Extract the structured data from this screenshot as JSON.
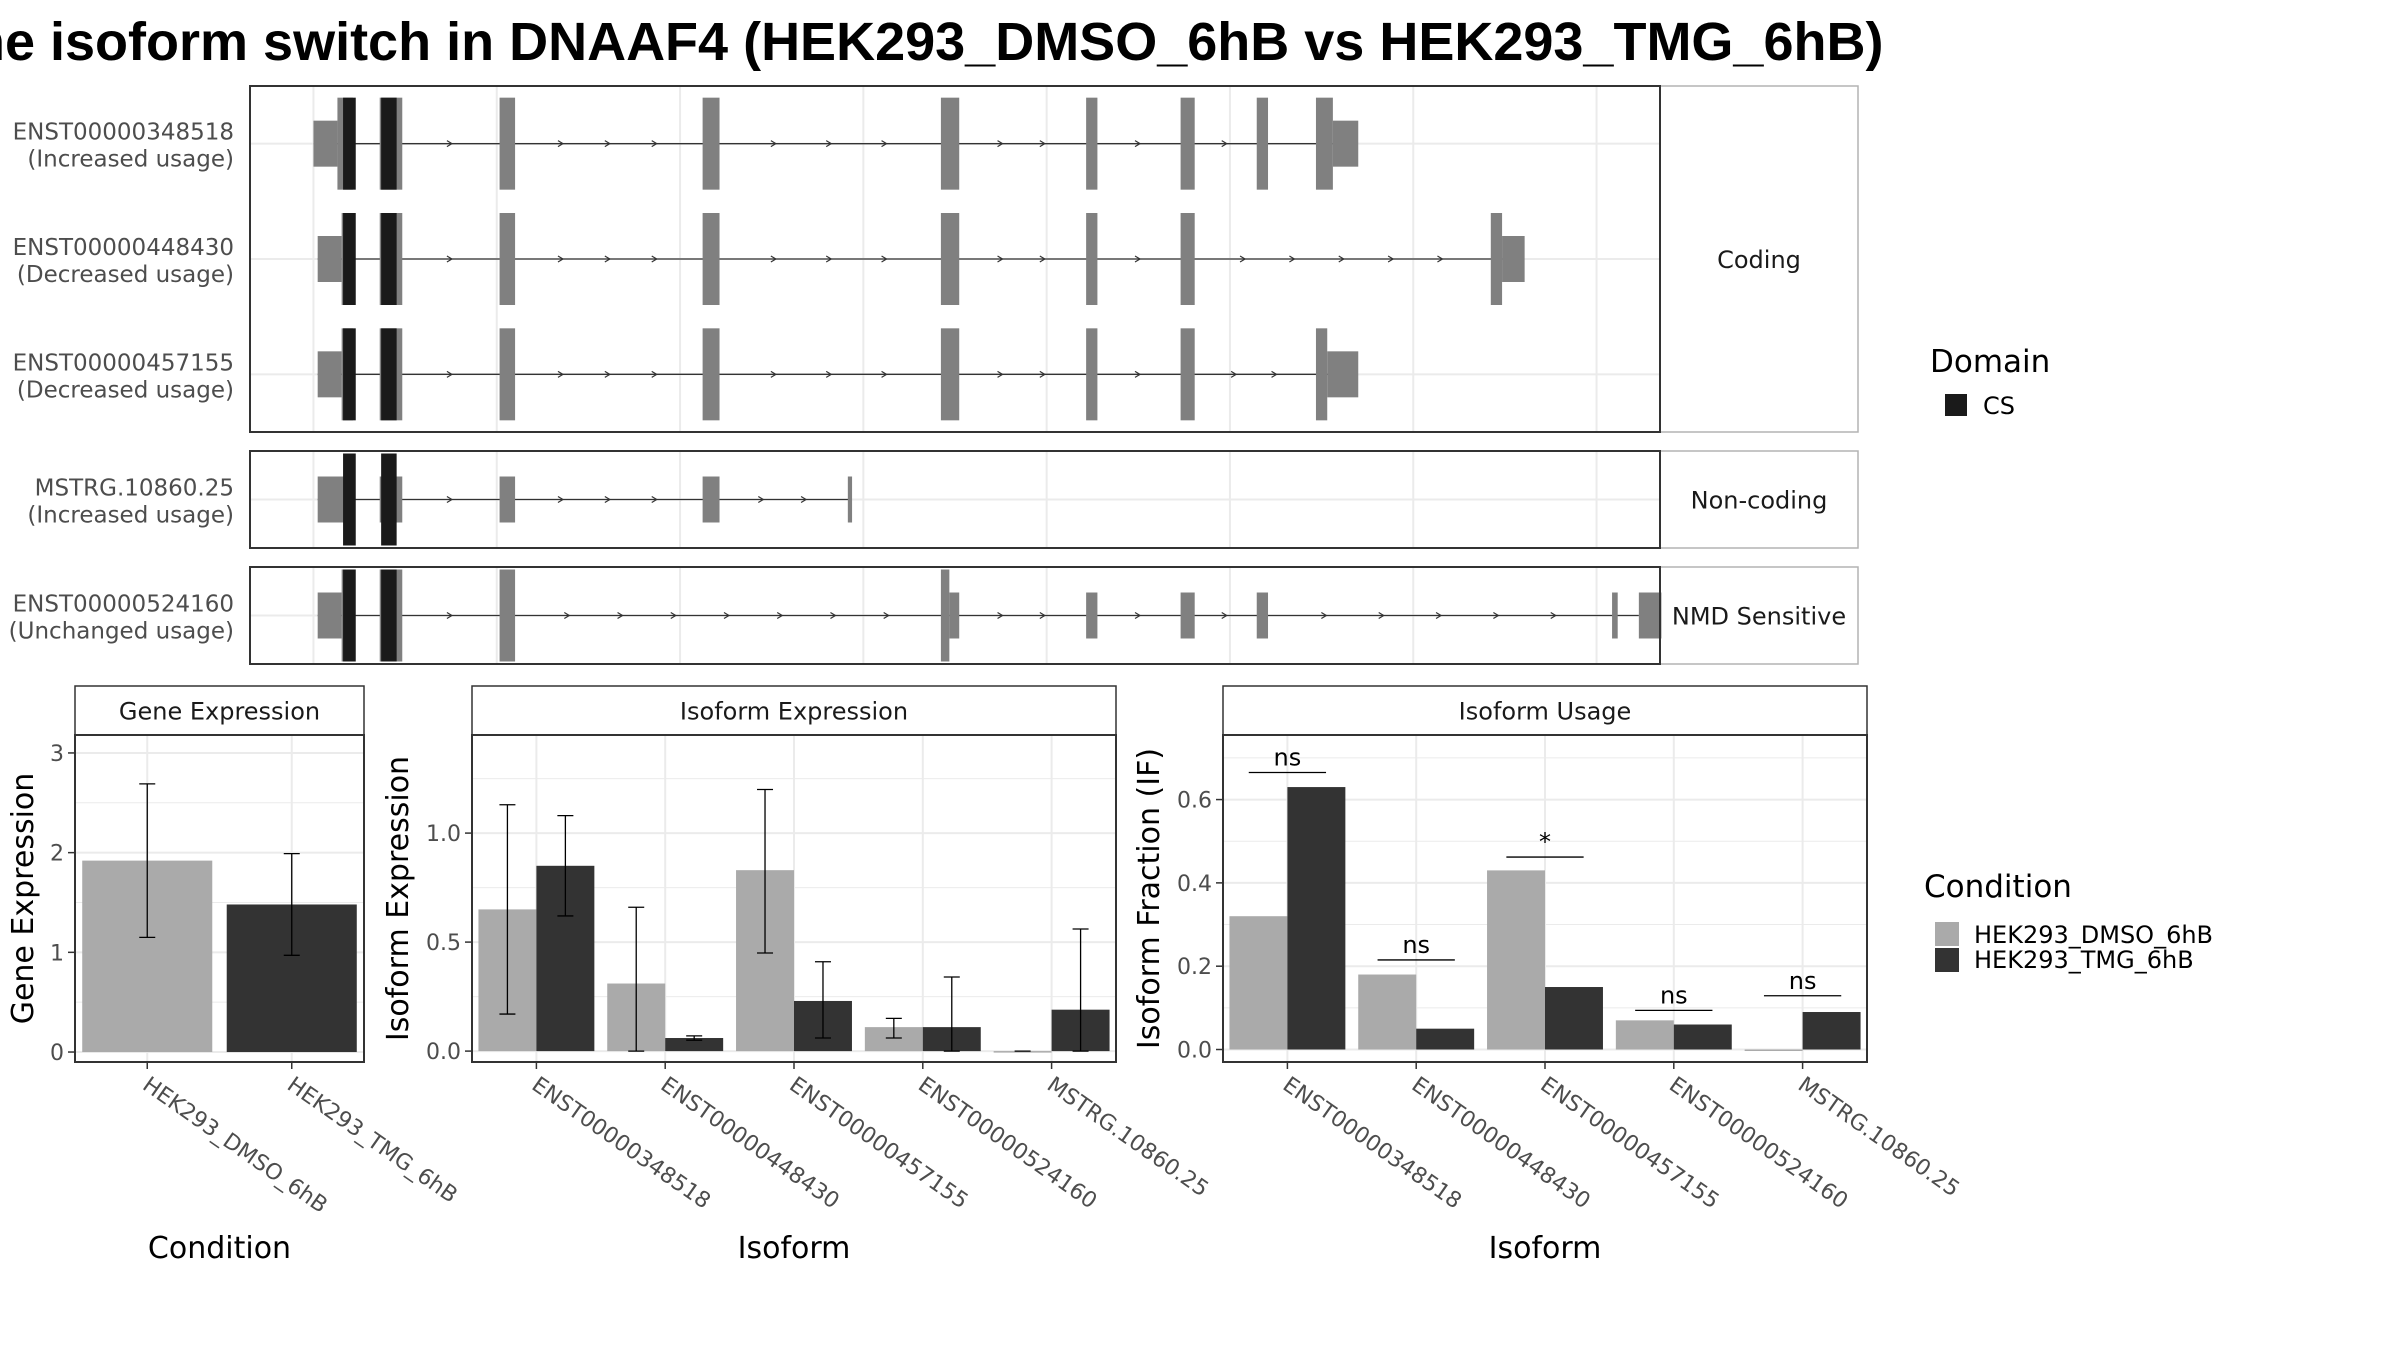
{
  "title": "he isoform switch in DNAAF4 (HEK293_DMSO_6hB vs HEK293_TMG_6hB)",
  "colors": {
    "exon": "#808080",
    "domain_cs": "#1a1a1a",
    "dmso": "#aaaaaa",
    "tmg": "#333333",
    "grid": "#ebebeb"
  },
  "structure": {
    "x_range": [
      0,
      1000
    ],
    "gridlines": [
      45,
      175,
      305,
      435,
      565,
      695,
      825,
      955
    ],
    "facets": [
      {
        "strip": "Coding",
        "rows": [
          {
            "id": "ENST00000348518",
            "usage": "(Increased usage)",
            "start": 45,
            "end": 770,
            "exons": [
              {
                "s": 45,
                "e": 62,
                "t": "utr"
              },
              {
                "s": 62,
                "e": 73,
                "t": "cds"
              },
              {
                "s": 92,
                "e": 108,
                "t": "cds"
              },
              {
                "s": 177,
                "e": 188,
                "t": "cds"
              },
              {
                "s": 321,
                "e": 333,
                "t": "cds"
              },
              {
                "s": 490,
                "e": 503,
                "t": "cds"
              },
              {
                "s": 593,
                "e": 601,
                "t": "cds"
              },
              {
                "s": 660,
                "e": 670,
                "t": "cds"
              },
              {
                "s": 714,
                "e": 722,
                "t": "cds"
              },
              {
                "s": 756,
                "e": 768,
                "t": "cds"
              },
              {
                "s": 768,
                "e": 786,
                "t": "utr"
              }
            ],
            "domains": [
              {
                "s": 66,
                "e": 75
              },
              {
                "s": 93,
                "e": 104
              }
            ]
          },
          {
            "id": "ENST00000448430",
            "usage": "(Decreased usage)",
            "start": 48,
            "end": 890,
            "exons": [
              {
                "s": 48,
                "e": 65,
                "t": "utr"
              },
              {
                "s": 65,
                "e": 73,
                "t": "cds"
              },
              {
                "s": 92,
                "e": 108,
                "t": "cds"
              },
              {
                "s": 177,
                "e": 188,
                "t": "cds"
              },
              {
                "s": 321,
                "e": 333,
                "t": "cds"
              },
              {
                "s": 490,
                "e": 503,
                "t": "cds"
              },
              {
                "s": 593,
                "e": 601,
                "t": "cds"
              },
              {
                "s": 660,
                "e": 670,
                "t": "cds"
              },
              {
                "s": 880,
                "e": 888,
                "t": "cds"
              },
              {
                "s": 888,
                "e": 904,
                "t": "utr"
              }
            ],
            "domains": [
              {
                "s": 66,
                "e": 75
              },
              {
                "s": 93,
                "e": 104
              }
            ]
          },
          {
            "id": "ENST00000457155",
            "usage": "(Decreased usage)",
            "start": 48,
            "end": 770,
            "exons": [
              {
                "s": 48,
                "e": 65,
                "t": "utr"
              },
              {
                "s": 65,
                "e": 73,
                "t": "cds"
              },
              {
                "s": 92,
                "e": 108,
                "t": "cds"
              },
              {
                "s": 177,
                "e": 188,
                "t": "cds"
              },
              {
                "s": 321,
                "e": 333,
                "t": "cds"
              },
              {
                "s": 490,
                "e": 503,
                "t": "cds"
              },
              {
                "s": 593,
                "e": 601,
                "t": "cds"
              },
              {
                "s": 660,
                "e": 670,
                "t": "cds"
              },
              {
                "s": 756,
                "e": 764,
                "t": "cds"
              },
              {
                "s": 764,
                "e": 786,
                "t": "utr"
              }
            ],
            "domains": [
              {
                "s": 66,
                "e": 75
              },
              {
                "s": 93,
                "e": 104
              }
            ]
          }
        ]
      },
      {
        "strip": "Non-coding",
        "rows": [
          {
            "id": "MSTRG.10860.25",
            "usage": "(Increased usage)",
            "start": 48,
            "end": 426,
            "exons": [
              {
                "s": 48,
                "e": 73,
                "t": "utr"
              },
              {
                "s": 92,
                "e": 108,
                "t": "utr"
              },
              {
                "s": 177,
                "e": 188,
                "t": "utr"
              },
              {
                "s": 321,
                "e": 333,
                "t": "utr"
              },
              {
                "s": 424,
                "e": 427,
                "t": "utr"
              }
            ],
            "domains": [
              {
                "s": 66,
                "e": 75
              },
              {
                "s": 93,
                "e": 104
              }
            ]
          }
        ]
      },
      {
        "strip": "NMD Sensitive",
        "rows": [
          {
            "id": "ENST00000524160",
            "usage": "(Unchanged usage)",
            "start": 48,
            "end": 985,
            "exons": [
              {
                "s": 48,
                "e": 65,
                "t": "utr"
              },
              {
                "s": 65,
                "e": 73,
                "t": "cds"
              },
              {
                "s": 92,
                "e": 108,
                "t": "cds"
              },
              {
                "s": 177,
                "e": 188,
                "t": "cds"
              },
              {
                "s": 490,
                "e": 496,
                "t": "cds"
              },
              {
                "s": 496,
                "e": 503,
                "t": "utr"
              },
              {
                "s": 593,
                "e": 601,
                "t": "utr"
              },
              {
                "s": 660,
                "e": 670,
                "t": "utr"
              },
              {
                "s": 714,
                "e": 722,
                "t": "utr"
              },
              {
                "s": 966,
                "e": 970,
                "t": "utr"
              },
              {
                "s": 985,
                "e": 1001,
                "t": "utr"
              }
            ],
            "domains": [
              {
                "s": 66,
                "e": 75
              },
              {
                "s": 93,
                "e": 104
              }
            ]
          }
        ]
      }
    ]
  },
  "domain_legend": {
    "title": "Domain",
    "items": [
      {
        "label": "CS",
        "color": "#1a1a1a"
      }
    ]
  },
  "condition_legend": {
    "title": "Condition",
    "items": [
      {
        "label": "HEK293_DMSO_6hB",
        "color": "#aaaaaa"
      },
      {
        "label": "HEK293_TMG_6hB",
        "color": "#333333"
      }
    ]
  },
  "chart_data": [
    {
      "type": "bar",
      "panel": "Gene Expression",
      "xlabel": "Condition",
      "ylabel": "Gene Expression",
      "ylim": [
        -0.1,
        3.18
      ],
      "yticks": [
        0,
        1,
        2,
        3
      ],
      "categories": [
        "HEK293_DMSO_6hB",
        "HEK293_TMG_6hB"
      ],
      "values": [
        1.92,
        1.48
      ],
      "error_low": [
        1.15,
        0.97
      ],
      "error_high": [
        2.69,
        1.99
      ],
      "colors": [
        "#aaaaaa",
        "#333333"
      ]
    },
    {
      "type": "bar",
      "panel": "Isoform Expression",
      "xlabel": "Isoform",
      "ylabel": "Isoform Expression",
      "ylim": [
        -0.05,
        1.45
      ],
      "yticks": [
        0.0,
        0.5,
        1.0
      ],
      "categories": [
        "ENST00000348518",
        "ENST00000448430",
        "ENST00000457155",
        "ENST00000524160",
        "MSTRG.10860.25"
      ],
      "series": [
        {
          "name": "HEK293_DMSO_6hB",
          "values": [
            0.65,
            0.31,
            0.83,
            0.11,
            0.0
          ],
          "error_low": [
            0.17,
            0.0,
            0.45,
            0.06,
            0.0
          ],
          "error_high": [
            1.13,
            0.66,
            1.2,
            0.15,
            0.0
          ]
        },
        {
          "name": "HEK293_TMG_6hB",
          "values": [
            0.85,
            0.06,
            0.23,
            0.11,
            0.19
          ],
          "error_low": [
            0.62,
            0.05,
            0.06,
            0.0,
            0.0
          ],
          "error_high": [
            1.08,
            0.07,
            0.41,
            0.34,
            0.56
          ]
        }
      ]
    },
    {
      "type": "bar",
      "panel": "Isoform Usage",
      "xlabel": "Isoform",
      "ylabel": "Isoform Fraction (IF)",
      "ylim": [
        -0.03,
        0.755
      ],
      "yticks": [
        0.0,
        0.2,
        0.4,
        0.6
      ],
      "categories": [
        "ENST00000348518",
        "ENST00000448430",
        "ENST00000457155",
        "ENST00000524160",
        "MSTRG.10860.25"
      ],
      "series": [
        {
          "name": "HEK293_DMSO_6hB",
          "values": [
            0.32,
            0.18,
            0.43,
            0.07,
            0.0
          ]
        },
        {
          "name": "HEK293_TMG_6hB",
          "values": [
            0.63,
            0.05,
            0.15,
            0.06,
            0.09
          ]
        }
      ],
      "significance": [
        {
          "label": "ns",
          "y": 0.665
        },
        {
          "label": "ns",
          "y": 0.215
        },
        {
          "label": "*",
          "y": 0.462
        },
        {
          "label": "ns",
          "y": 0.094
        },
        {
          "label": "ns",
          "y": 0.129
        }
      ]
    }
  ]
}
